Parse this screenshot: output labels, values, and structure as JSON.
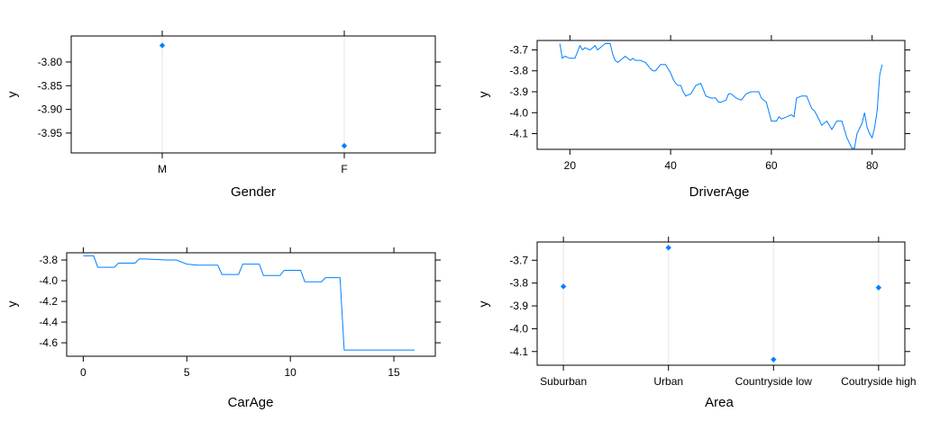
{
  "chart_data": [
    {
      "type": "scatter",
      "xlabel": "Gender",
      "ylabel": "y",
      "categories": [
        "M",
        "F"
      ],
      "values": [
        -3.765,
        -3.977
      ],
      "yticks": [
        -3.8,
        -3.85,
        -3.9,
        -3.95
      ],
      "ytick_labels": [
        "-3.80",
        "-3.85",
        "-3.90",
        "-3.95"
      ],
      "ylim": [
        -3.992,
        -3.745
      ],
      "grid": "vertical lines at categories",
      "color": "#0080ff"
    },
    {
      "type": "line",
      "xlabel": "DriverAge",
      "ylabel": "y",
      "xticks": [
        20,
        40,
        60,
        80
      ],
      "yticks": [
        -3.7,
        -3.8,
        -3.9,
        -4.0,
        -4.1
      ],
      "ytick_labels": [
        "-3.7",
        "-3.8",
        "-3.9",
        "-4.0",
        "-4.1"
      ],
      "xlim": [
        13.5,
        86.5
      ],
      "ylim": [
        -4.175,
        -3.655
      ],
      "color": "#0080ff",
      "x": [
        18,
        18.5,
        19,
        20,
        21,
        22,
        22.5,
        23,
        24,
        25,
        25.5,
        26,
        26.5,
        27,
        28,
        28.5,
        29,
        29.5,
        30,
        31,
        32,
        32.5,
        33,
        34,
        35,
        36,
        36.5,
        37,
        38,
        39,
        40,
        40.5,
        41,
        41.5,
        42,
        42.5,
        43,
        44,
        44.5,
        45,
        46,
        47,
        48,
        49,
        49.5,
        50,
        51,
        51.5,
        52,
        53,
        54,
        55,
        56,
        57,
        57.5,
        58,
        59,
        60,
        61,
        61.5,
        62,
        63,
        64,
        64.5,
        65,
        66,
        67,
        67.5,
        68,
        68.5,
        69,
        70,
        70.5,
        71,
        72,
        73,
        74,
        74.5,
        75,
        76,
        76.5,
        77,
        78,
        78.5,
        79,
        79.5,
        80,
        80.5,
        81,
        81.5,
        82
      ],
      "y": [
        -3.67,
        -3.74,
        -3.73,
        -3.74,
        -3.74,
        -3.68,
        -3.7,
        -3.69,
        -3.7,
        -3.68,
        -3.7,
        -3.69,
        -3.68,
        -3.67,
        -3.67,
        -3.72,
        -3.75,
        -3.76,
        -3.75,
        -3.73,
        -3.75,
        -3.74,
        -3.75,
        -3.75,
        -3.76,
        -3.79,
        -3.8,
        -3.8,
        -3.77,
        -3.77,
        -3.81,
        -3.84,
        -3.86,
        -3.87,
        -3.87,
        -3.9,
        -3.92,
        -3.91,
        -3.89,
        -3.87,
        -3.86,
        -3.92,
        -3.93,
        -3.93,
        -3.95,
        -3.95,
        -3.94,
        -3.91,
        -3.91,
        -3.93,
        -3.94,
        -3.91,
        -3.9,
        -3.9,
        -3.9,
        -3.93,
        -3.95,
        -4.04,
        -4.04,
        -4.02,
        -4.03,
        -4.02,
        -4.01,
        -4.02,
        -3.93,
        -3.92,
        -3.92,
        -3.95,
        -3.98,
        -3.99,
        -4.01,
        -4.06,
        -4.05,
        -4.04,
        -4.08,
        -4.04,
        -4.04,
        -4.08,
        -4.12,
        -4.17,
        -4.17,
        -4.1,
        -4.05,
        -4.0,
        -4.07,
        -4.1,
        -4.12,
        -4.07,
        -3.99,
        -3.82,
        -3.77
      ]
    },
    {
      "type": "line",
      "xlabel": "CarAge",
      "ylabel": "y",
      "xticks": [
        0,
        5,
        10,
        15
      ],
      "yticks": [
        -3.8,
        -4.0,
        -4.2,
        -4.4,
        -4.6
      ],
      "ytick_labels": [
        "-3.8",
        "-4.0",
        "-4.2",
        "-4.4",
        "-4.6"
      ],
      "xlim": [
        -0.8,
        17.0
      ],
      "ylim": [
        -4.73,
        -3.73
      ],
      "color": "#0080ff",
      "x": [
        0,
        0.5,
        0.7,
        1.5,
        1.7,
        2.5,
        2.7,
        3.0,
        4.0,
        4.5,
        5.0,
        5.5,
        6.5,
        6.7,
        7.5,
        7.7,
        8.5,
        8.7,
        9.5,
        9.7,
        10.5,
        10.7,
        11.5,
        11.7,
        12.4,
        12.6,
        16.0
      ],
      "y": [
        -3.76,
        -3.76,
        -3.87,
        -3.87,
        -3.83,
        -3.83,
        -3.79,
        -3.79,
        -3.8,
        -3.8,
        -3.84,
        -3.85,
        -3.85,
        -3.94,
        -3.94,
        -3.84,
        -3.84,
        -3.95,
        -3.95,
        -3.9,
        -3.9,
        -4.01,
        -4.01,
        -3.97,
        -3.97,
        -4.67,
        -4.67
      ]
    },
    {
      "type": "scatter",
      "xlabel": "Area",
      "ylabel": "y",
      "categories": [
        "Suburban",
        "Urban",
        "Countryside low",
        "Coutryside high"
      ],
      "values": [
        -3.815,
        -3.645,
        -4.135,
        -3.82
      ],
      "yticks": [
        -3.7,
        -3.8,
        -3.9,
        -4.0,
        -4.1
      ],
      "ytick_labels": [
        "-3.7",
        "-3.8",
        "-3.9",
        "-4.0",
        "-4.1"
      ],
      "ylim": [
        -4.16,
        -3.62
      ],
      "grid": "vertical lines at categories",
      "color": "#0080ff"
    }
  ]
}
